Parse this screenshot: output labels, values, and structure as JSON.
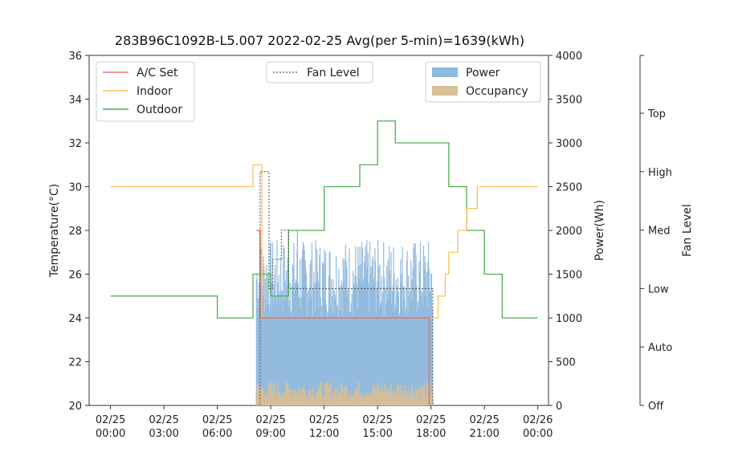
{
  "chart_data": {
    "type": "line",
    "title": "283B96C1092B-L5.007 2022-02-25 Avg(per 5-min)=1639(kWh)",
    "x_tick_labels": [
      [
        "02/25",
        "00:00"
      ],
      [
        "02/25",
        "03:00"
      ],
      [
        "02/25",
        "06:00"
      ],
      [
        "02/25",
        "09:00"
      ],
      [
        "02/25",
        "12:00"
      ],
      [
        "02/25",
        "15:00"
      ],
      [
        "02/25",
        "18:00"
      ],
      [
        "02/25",
        "21:00"
      ],
      [
        "02/26",
        "00:00"
      ]
    ],
    "x_ticks_hours": [
      0,
      3,
      6,
      9,
      12,
      15,
      18,
      21,
      24
    ],
    "x_range_hours": [
      -1.2,
      24.6
    ],
    "y_left": {
      "label": "Temperature(°C)",
      "range": [
        20,
        36
      ],
      "ticks": [
        20,
        22,
        24,
        26,
        28,
        30,
        32,
        34,
        36
      ]
    },
    "y_right": {
      "label": "Power(Wh)",
      "range": [
        0,
        4000
      ],
      "ticks": [
        0,
        500,
        1000,
        1500,
        2000,
        2500,
        3000,
        3500,
        4000
      ]
    },
    "y_fan": {
      "label": "Fan Level",
      "levels": [
        "Off",
        "Auto",
        "Low",
        "Med",
        "High",
        "Top"
      ]
    },
    "legend_left": [
      {
        "name": "A/C Set",
        "color": "#e8736e"
      },
      {
        "name": "Indoor",
        "color": "#f8c35a"
      },
      {
        "name": "Outdoor",
        "color": "#4caf50"
      }
    ],
    "legend_center": [
      {
        "name": "Fan Level",
        "color": "#555555"
      }
    ],
    "legend_right": [
      {
        "name": "Power",
        "color": "#8fb8dd"
      },
      {
        "name": "Occupancy",
        "color": "#d8bf96"
      }
    ],
    "series": {
      "outdoor_temp": {
        "color": "#4caf50",
        "x": [
          0,
          6,
          8,
          9,
          10,
          11,
          12,
          14,
          15,
          16,
          19,
          20,
          21,
          22,
          24
        ],
        "y": [
          25,
          24,
          26,
          25,
          28,
          28,
          30,
          31,
          33,
          32,
          30,
          28,
          26,
          24,
          24
        ]
      },
      "indoor_temp": {
        "color": "#f8c35a",
        "x": [
          0,
          7.8,
          8.0,
          8.3,
          8.5,
          18.0,
          18.4,
          18.8,
          19.0,
          19.5,
          20.0,
          20.6,
          21.0,
          21.3,
          24
        ],
        "y": [
          30,
          30,
          31,
          31,
          24,
          24,
          25,
          26,
          27,
          28,
          29,
          30,
          30,
          30,
          30
        ]
      },
      "ac_set": {
        "color": "#e8736e",
        "x": [
          8.2,
          8.4,
          8.6,
          9.5,
          17.8,
          17.9
        ],
        "y": [
          28,
          24,
          24,
          24,
          24,
          20
        ]
      },
      "fan_level": {
        "color": "#555555",
        "x": [
          8.2,
          8.4,
          8.9,
          9.1,
          9.6,
          10.0,
          11.0,
          15.0,
          18.0,
          18.1
        ],
        "y": [
          0,
          4,
          2,
          2.5,
          3,
          2,
          2,
          2,
          2,
          0
        ]
      },
      "power_band": {
        "color": "#8fb8dd",
        "x_start": 8.2,
        "x_end": 18.1,
        "typical_min": 1000,
        "typical_max": 1900,
        "peak": 2000
      },
      "occupancy_band": {
        "color": "#d8bf96",
        "x_start": 8.2,
        "x_end": 18.1,
        "level": 200
      }
    }
  }
}
